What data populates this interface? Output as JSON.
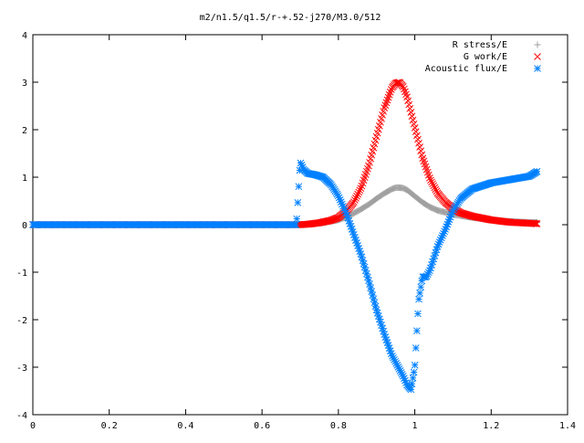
{
  "chart_data": {
    "type": "scatter",
    "title": "m2/n1.5/q1.5/r-+.52-j270/M3.0/512",
    "xlabel": "",
    "ylabel": "",
    "xlim": [
      0,
      1.4
    ],
    "ylim": [
      -4,
      4
    ],
    "x_ticks": [
      "0",
      "0.2",
      "0.4",
      "0.6",
      "0.8",
      "1",
      "1.2",
      "1.4"
    ],
    "y_ticks": [
      "-4",
      "-3",
      "-2",
      "-1",
      "0",
      "1",
      "2",
      "3",
      "4"
    ],
    "grid": false,
    "legend_position": "top-right",
    "series": [
      {
        "name": "R stress/E",
        "marker": "+",
        "color": "#a0a0a0",
        "x": [
          0,
          0.1,
          0.2,
          0.3,
          0.4,
          0.5,
          0.6,
          0.7,
          0.72,
          0.75,
          0.78,
          0.8,
          0.82,
          0.84,
          0.86,
          0.88,
          0.9,
          0.92,
          0.94,
          0.95,
          0.96,
          0.97,
          0.98,
          1.0,
          1.02,
          1.04,
          1.06,
          1.08,
          1.1,
          1.12,
          1.15,
          1.2,
          1.25,
          1.3,
          1.32
        ],
        "y": [
          0,
          0,
          0,
          0,
          0,
          0,
          0,
          0,
          0.01,
          0.03,
          0.07,
          0.1,
          0.16,
          0.24,
          0.33,
          0.43,
          0.55,
          0.66,
          0.75,
          0.78,
          0.78,
          0.77,
          0.73,
          0.6,
          0.47,
          0.37,
          0.3,
          0.26,
          0.22,
          0.19,
          0.15,
          0.1,
          0.07,
          0.05,
          0.05
        ]
      },
      {
        "name": "G work/E",
        "marker": "x",
        "color": "#ff0000",
        "x": [
          0,
          0.1,
          0.2,
          0.3,
          0.4,
          0.5,
          0.6,
          0.7,
          0.72,
          0.75,
          0.78,
          0.8,
          0.82,
          0.84,
          0.86,
          0.88,
          0.9,
          0.92,
          0.94,
          0.95,
          0.96,
          0.97,
          0.98,
          1.0,
          1.02,
          1.04,
          1.06,
          1.08,
          1.1,
          1.12,
          1.15,
          1.2,
          1.25,
          1.3,
          1.32
        ],
        "y": [
          0,
          0,
          0,
          0,
          0,
          0,
          0,
          0,
          0.01,
          0.04,
          0.09,
          0.15,
          0.28,
          0.47,
          0.79,
          1.26,
          1.86,
          2.45,
          2.88,
          2.98,
          3.0,
          2.9,
          2.68,
          2.05,
          1.42,
          0.96,
          0.66,
          0.47,
          0.34,
          0.25,
          0.18,
          0.1,
          0.05,
          0.03,
          0.02
        ]
      },
      {
        "name": "Acoustic flux/E",
        "marker": "*",
        "color": "#0080ff",
        "x": [
          0,
          0.1,
          0.2,
          0.3,
          0.4,
          0.5,
          0.6,
          0.69,
          0.7,
          0.71,
          0.72,
          0.74,
          0.76,
          0.78,
          0.8,
          0.82,
          0.84,
          0.86,
          0.88,
          0.9,
          0.92,
          0.94,
          0.95,
          0.96,
          0.97,
          0.98,
          0.99,
          1.0,
          1.01,
          1.02,
          1.03,
          1.04,
          1.06,
          1.08,
          1.1,
          1.12,
          1.15,
          1.2,
          1.25,
          1.3,
          1.32
        ],
        "y": [
          0,
          0,
          0,
          0,
          0,
          0,
          0,
          0,
          1.32,
          1.15,
          1.08,
          1.05,
          1.0,
          0.85,
          0.6,
          0.25,
          -0.2,
          -0.65,
          -1.2,
          -1.8,
          -2.3,
          -2.75,
          -2.9,
          -3.05,
          -3.2,
          -3.38,
          -3.47,
          -3.0,
          -1.6,
          -1.1,
          -1.1,
          -0.95,
          -0.45,
          -0.1,
          0.3,
          0.55,
          0.75,
          0.88,
          0.95,
          1.02,
          1.12
        ]
      }
    ]
  }
}
